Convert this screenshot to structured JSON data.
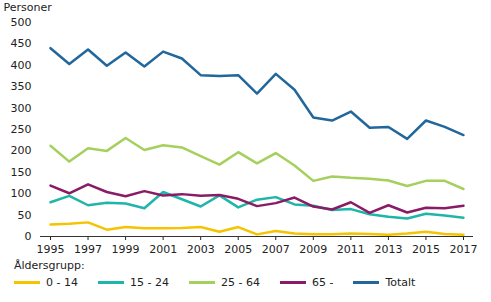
{
  "chart_data": {
    "type": "line",
    "y_label": "Personer",
    "legend_title": "Åldersgrupp:",
    "legend": "bottom",
    "grid": false,
    "x": [
      1995,
      1996,
      1997,
      1998,
      1999,
      2000,
      2001,
      2002,
      2003,
      2004,
      2005,
      2006,
      2007,
      2008,
      2009,
      2010,
      2011,
      2012,
      2013,
      2014,
      2015,
      2016,
      2017
    ],
    "xlim": [
      1995,
      2017
    ],
    "xticks": [
      1995,
      1997,
      1999,
      2001,
      2003,
      2005,
      2007,
      2009,
      2011,
      2013,
      2015,
      2017
    ],
    "ylim": [
      0,
      500
    ],
    "yticks": [
      0,
      50,
      100,
      150,
      200,
      250,
      300,
      350,
      400,
      450,
      500
    ],
    "series": [
      {
        "name": "0 - 14",
        "color": "#f5c400",
        "values": [
          28,
          30,
          33,
          16,
          22,
          19,
          19,
          20,
          22,
          11,
          22,
          5,
          13,
          7,
          5,
          5,
          7,
          6,
          4,
          7,
          11,
          6,
          4
        ]
      },
      {
        "name": "15 - 24",
        "color": "#1fb5a9",
        "values": [
          80,
          95,
          73,
          79,
          77,
          66,
          104,
          87,
          70,
          96,
          68,
          86,
          92,
          75,
          72,
          62,
          64,
          52,
          46,
          42,
          53,
          49,
          44
        ]
      },
      {
        "name": "25 - 64",
        "color": "#a5d05d",
        "values": [
          212,
          175,
          206,
          200,
          230,
          202,
          213,
          208,
          188,
          168,
          197,
          171,
          195,
          166,
          130,
          140,
          137,
          135,
          131,
          118,
          130,
          130,
          111
        ]
      },
      {
        "name": "65 -",
        "color": "#8a1b66",
        "values": [
          119,
          101,
          122,
          104,
          94,
          106,
          96,
          99,
          95,
          97,
          88,
          71,
          78,
          91,
          70,
          63,
          80,
          55,
          73,
          56,
          67,
          66,
          72
        ]
      },
      {
        "name": "Totalt",
        "color": "#22679b",
        "values": [
          440,
          403,
          437,
          399,
          430,
          397,
          432,
          416,
          377,
          375,
          377,
          334,
          380,
          343,
          278,
          271,
          292,
          254,
          256,
          228,
          271,
          256,
          237
        ]
      }
    ]
  }
}
